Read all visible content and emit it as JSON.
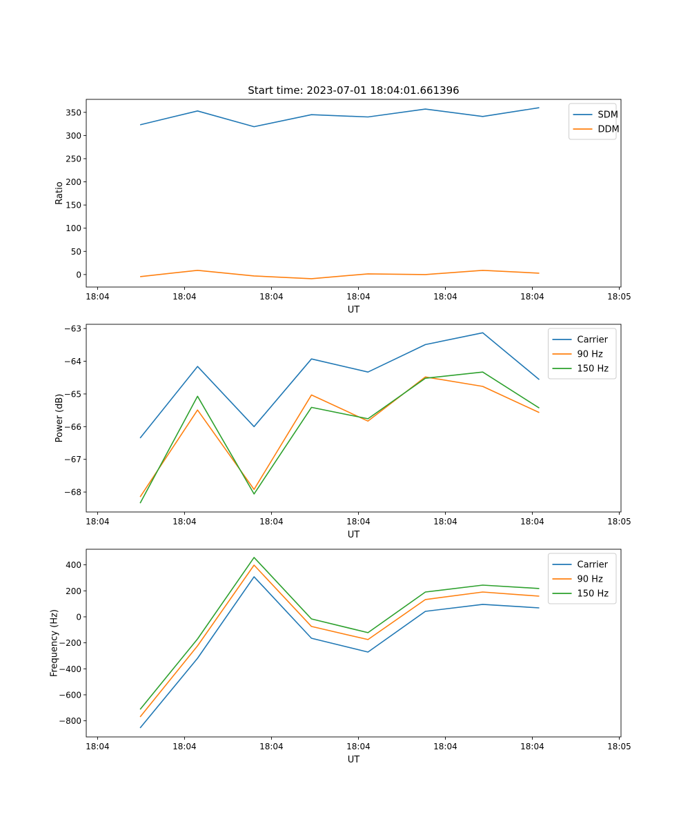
{
  "chart_data": [
    {
      "type": "line",
      "title": "Start time: 2023-07-01 18:04:01.661396",
      "xlabel": "UT",
      "ylabel": "Ratio",
      "x_unit": "seconds after 18:04:00",
      "x": [
        4.9,
        11.5,
        18.0,
        24.6,
        31.1,
        37.7,
        44.3,
        50.8
      ],
      "xlim": [
        -1.3,
        60.2
      ],
      "xticks": [
        0,
        10,
        20,
        30,
        40,
        50,
        60
      ],
      "xtick_labels": [
        "18:04",
        "18:04",
        "18:04",
        "18:04",
        "18:04",
        "18:04",
        "18:05"
      ],
      "ylim": [
        -27,
        378
      ],
      "yticks": [
        0,
        50,
        100,
        150,
        200,
        250,
        300,
        350
      ],
      "ytick_labels": [
        "0",
        "50",
        "100",
        "150",
        "200",
        "250",
        "300",
        "350"
      ],
      "legend": "top-right",
      "grid": false,
      "series": [
        {
          "name": "SDM",
          "color": "#1f77b4",
          "values": [
            323,
            353,
            319,
            345,
            340,
            357,
            341,
            360
          ]
        },
        {
          "name": "DDM",
          "color": "#ff7f0e",
          "values": [
            -4.5,
            9,
            -3,
            -9,
            1.5,
            0,
            9,
            3
          ]
        }
      ]
    },
    {
      "type": "line",
      "xlabel": "UT",
      "ylabel": "Power (dB)",
      "x_unit": "seconds after 18:04:00",
      "x": [
        4.9,
        11.5,
        18.0,
        24.6,
        31.1,
        37.7,
        44.3,
        50.8
      ],
      "xlim": [
        -1.3,
        60.2
      ],
      "xticks": [
        0,
        10,
        20,
        30,
        40,
        50,
        60
      ],
      "xtick_labels": [
        "18:04",
        "18:04",
        "18:04",
        "18:04",
        "18:04",
        "18:04",
        "18:05"
      ],
      "ylim": [
        -68.61,
        -62.87
      ],
      "yticks": [
        -68,
        -67,
        -66,
        -65,
        -64,
        -63
      ],
      "ytick_labels": [
        "−68",
        "−67",
        "−66",
        "−65",
        "−64",
        "−63"
      ],
      "legend": "top-right",
      "grid": false,
      "series": [
        {
          "name": "Carrier",
          "color": "#1f77b4",
          "values": [
            -66.35,
            -64.16,
            -66.0,
            -63.93,
            -64.33,
            -63.49,
            -63.13,
            -64.56
          ]
        },
        {
          "name": "90 Hz",
          "color": "#ff7f0e",
          "values": [
            -68.15,
            -65.49,
            -67.92,
            -65.03,
            -65.83,
            -64.48,
            -64.77,
            -65.57
          ]
        },
        {
          "name": "150 Hz",
          "color": "#2ca02c",
          "values": [
            -68.34,
            -65.07,
            -68.06,
            -65.41,
            -65.76,
            -64.52,
            -64.33,
            -65.43
          ]
        }
      ]
    },
    {
      "type": "line",
      "xlabel": "UT",
      "ylabel": "Frequency (Hz)",
      "x_unit": "seconds after 18:04:00",
      "x": [
        4.9,
        11.5,
        18.0,
        24.6,
        31.1,
        37.7,
        44.3,
        50.8
      ],
      "xlim": [
        -1.3,
        60.2
      ],
      "xticks": [
        0,
        10,
        20,
        30,
        40,
        50,
        60
      ],
      "xtick_labels": [
        "18:04",
        "18:04",
        "18:04",
        "18:04",
        "18:04",
        "18:04",
        "18:05"
      ],
      "ylim": [
        -924,
        520
      ],
      "yticks": [
        -800,
        -600,
        -400,
        -200,
        0,
        200,
        400
      ],
      "ytick_labels": [
        "−800",
        "−600",
        "−400",
        "−200",
        "0",
        "200",
        "400"
      ],
      "legend": "top-right",
      "grid": false,
      "series": [
        {
          "name": "Carrier",
          "color": "#1f77b4",
          "values": [
            -855,
            -319,
            308,
            -165,
            -271,
            42,
            96,
            69
          ]
        },
        {
          "name": "90 Hz",
          "color": "#ff7f0e",
          "values": [
            -770,
            -223,
            398,
            -74,
            -175,
            133,
            191,
            159
          ]
        },
        {
          "name": "150 Hz",
          "color": "#2ca02c",
          "values": [
            -712,
            -170,
            457,
            -16,
            -122,
            191,
            244,
            218
          ]
        }
      ]
    }
  ]
}
